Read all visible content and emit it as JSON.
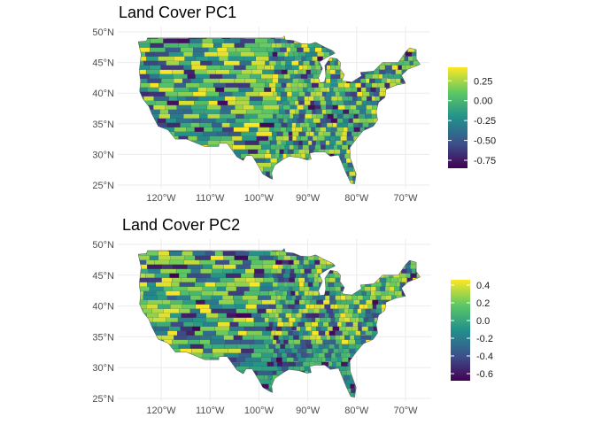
{
  "panels": [
    {
      "title": "Land Cover PC1",
      "lat_labels": [
        "50°N",
        "45°N",
        "40°N",
        "35°N",
        "30°N",
        "25°N"
      ],
      "lon_labels": [
        "120°W",
        "110°W",
        "100°W",
        "90°W",
        "80°W",
        "70°W"
      ],
      "legend": {
        "labels": [
          "0.25",
          "0.00",
          "-0.25",
          "-0.50",
          "-0.75"
        ],
        "range": [
          -0.85,
          0.42
        ]
      },
      "seed": 11
    },
    {
      "title": "Land Cover PC2",
      "lat_labels": [
        "50°N",
        "45°N",
        "40°N",
        "35°N",
        "30°N",
        "25°N"
      ],
      "lon_labels": [
        "120°W",
        "110°W",
        "100°W",
        "90°W",
        "80°W",
        "70°W"
      ],
      "legend": {
        "labels": [
          "0.4",
          "0.2",
          "0.0",
          "-0.2",
          "-0.4",
          "-0.6"
        ],
        "range": [
          -0.68,
          0.46
        ]
      },
      "seed": 29
    }
  ],
  "colorscale": [
    "#440154",
    "#3b528b",
    "#21908c",
    "#5dc863",
    "#fde725"
  ]
}
